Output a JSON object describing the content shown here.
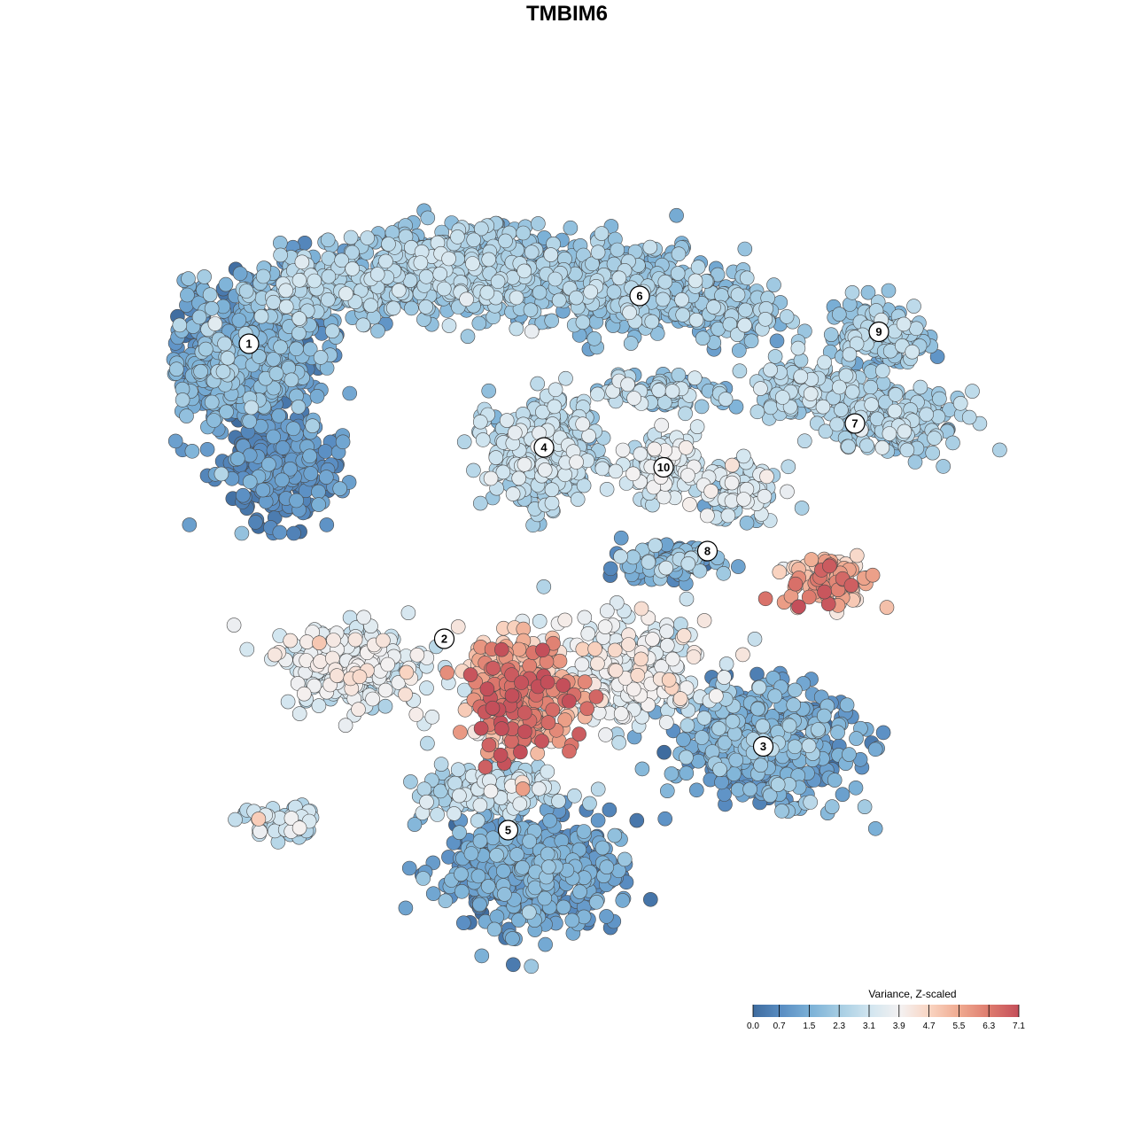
{
  "chart_data": {
    "type": "scatter",
    "title": "TMBIM6",
    "xlabel": "",
    "ylabel": "",
    "grid": false,
    "color_scale": {
      "title": "Variance, Z-scaled",
      "min": 0.0,
      "max": 7.1,
      "ticks": [
        "0.0",
        "0.7",
        "1.5",
        "2.3",
        "3.1",
        "3.9",
        "4.7",
        "5.5",
        "6.3",
        "7.1"
      ],
      "colors": [
        "#3f6c9f",
        "#5b8fc4",
        "#7eb3d8",
        "#a9cfe4",
        "#d3e6f0",
        "#f4f1f1",
        "#f9d3c0",
        "#efa98f",
        "#de7b6e",
        "#c44f5a"
      ],
      "legend_position": "bottom-right"
    },
    "clusters": [
      {
        "label": "1",
        "x": -7.4,
        "y": 5.6,
        "mean_value": 1.2
      },
      {
        "label": "6",
        "x": 2.4,
        "y": 6.8,
        "mean_value": 2.0
      },
      {
        "label": "9",
        "x": 8.4,
        "y": 5.9,
        "mean_value": 2.1
      },
      {
        "label": "4",
        "x": 0.0,
        "y": 3.0,
        "mean_value": 2.4
      },
      {
        "label": "10",
        "x": 3.0,
        "y": 2.5,
        "mean_value": 3.0
      },
      {
        "label": "7",
        "x": 7.8,
        "y": 3.6,
        "mean_value": 2.4
      },
      {
        "label": "8",
        "x": 4.1,
        "y": 0.4,
        "mean_value": 3.5
      },
      {
        "label": "2",
        "x": -2.5,
        "y": -1.8,
        "mean_value": 3.7
      },
      {
        "label": "3",
        "x": 5.5,
        "y": -4.5,
        "mean_value": 1.3
      },
      {
        "label": "5",
        "x": -0.9,
        "y": -6.6,
        "mean_value": 1.2
      }
    ]
  }
}
